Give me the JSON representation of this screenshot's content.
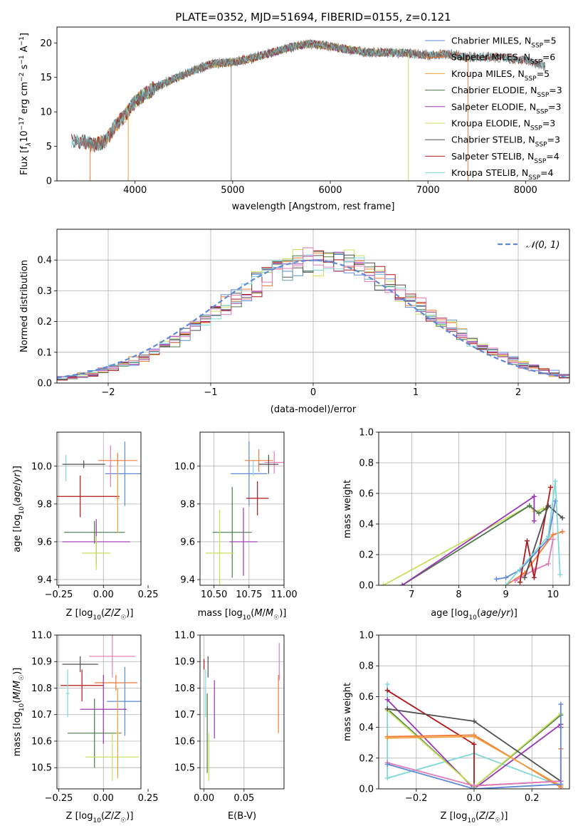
{
  "colors": {
    "Chabrier MILES": "#5f8ad8",
    "Salpeter MILES": "#f07b36",
    "Kroupa MILES": "#f0a040",
    "Chabrier ELODIE": "#4c7a4c",
    "Salpeter ELODIE": "#9b35b5",
    "Kroupa ELODIE": "#c8e05a",
    "Chabrier STELIB": "#505050",
    "Salpeter STELIB": "#b01818",
    "Kroupa STELIB": "#7fd8d8",
    "pink": "#e07cba",
    "grey": "#888888",
    "normal": "#5f8ad8"
  },
  "chart_data": [
    {
      "id": "spectrum",
      "type": "line",
      "title": "PLATE=0352, MJD=51694, FIBERID=0155, z=0.121",
      "xlabel": "wavelength [Angstrom, rest frame]",
      "ylabel_parts": [
        "Flux [f",
        "λ",
        "10",
        "−17",
        " erg cm",
        "−2",
        " s",
        "−1",
        " A",
        "−1",
        "]"
      ],
      "xlim": [
        3200,
        8450
      ],
      "ylim": [
        0,
        22.3
      ],
      "xticks": [
        4000,
        5000,
        6000,
        7000,
        8000
      ],
      "yticks": [
        0,
        5,
        10,
        15,
        20
      ],
      "continuum_x": [
        3400,
        3500,
        3600,
        3700,
        3800,
        3900,
        4000,
        4200,
        4400,
        4600,
        4800,
        5000,
        5200,
        5400,
        5600,
        5800,
        6000,
        6200,
        6400,
        6600,
        6800,
        7000,
        7200,
        7400,
        7600,
        7800,
        8000,
        8200
      ],
      "continuum_y": [
        5.8,
        5.5,
        5.2,
        5.8,
        8.0,
        9.5,
        11.5,
        13.5,
        14.8,
        16.0,
        17.0,
        17.2,
        17.8,
        18.6,
        19.4,
        19.9,
        19.5,
        19.0,
        18.6,
        18.6,
        18.5,
        18.2,
        18.4,
        17.9,
        18.0,
        17.8,
        17.5,
        16.7
      ],
      "legend": [
        {
          "name": "Chabrier MILES",
          "nssp": "5"
        },
        {
          "name": "Salpeter MILES",
          "nssp": "6"
        },
        {
          "name": "Kroupa MILES",
          "nssp": "5"
        },
        {
          "name": "Chabrier ELODIE",
          "nssp": "3"
        },
        {
          "name": "Salpeter ELODIE",
          "nssp": "3"
        },
        {
          "name": "Kroupa ELODIE",
          "nssp": "3"
        },
        {
          "name": "Chabrier STELIB",
          "nssp": "3"
        },
        {
          "name": "Salpeter STELIB",
          "nssp": "4"
        },
        {
          "name": "Kroupa STELIB",
          "nssp": "4"
        }
      ],
      "legend_prefix": "N",
      "legend_sub": "SSP",
      "legend_placement": "right",
      "grid": false
    },
    {
      "id": "residuals",
      "type": "step",
      "xlabel": "(data-model)/error",
      "ylabel": "Normed distribution",
      "xlim": [
        -2.5,
        2.5
      ],
      "ylim": [
        0,
        0.5
      ],
      "xticks": [
        -2,
        -1,
        0,
        1,
        2
      ],
      "xticklabels": [
        "−2",
        "−1",
        "0",
        "1",
        "2"
      ],
      "yticks": [
        0,
        0.1,
        0.2,
        0.3,
        0.4
      ],
      "yticklabels": [
        "0.0",
        "0.1",
        "0.2",
        "0.3",
        "0.4"
      ],
      "bin_width": 0.1,
      "bin_start": -2.5,
      "legend_label": "𝒩(0, 1)",
      "legend_placement": "upper right",
      "grid": true,
      "series_names": [
        "Chabrier MILES",
        "Salpeter MILES",
        "Kroupa ELODIE",
        "Chabrier ELODIE",
        "Salpeter ELODIE",
        "Salpeter STELIB",
        "Chabrier STELIB",
        "Kroupa STELIB",
        "pink"
      ]
    },
    {
      "id": "z-age",
      "type": "errorbar",
      "xlabel": "Z [log10(Z/Z☉)]",
      "ylabel": "age  [log10(age/yr)]",
      "xlim": [
        -0.26,
        0.21
      ],
      "ylim": [
        9.37,
        10.18
      ],
      "xticks": [
        -0.25,
        0,
        0.25
      ],
      "xticklabels": [
        "−0.25",
        "0.00",
        "0.25"
      ],
      "yticks": [
        9.4,
        9.6,
        9.8,
        10.0
      ],
      "yticklabels": [
        "9.4",
        "9.6",
        "9.8",
        "10.0"
      ],
      "grid": true,
      "points": [
        {
          "s": "Chabrier MILES",
          "x": 0.12,
          "xe": 0.11,
          "y": 9.96,
          "ye": 0.17
        },
        {
          "s": "Salpeter MILES",
          "x": 0.08,
          "xe": 0.11,
          "y": 10.03,
          "ye": 0.04
        },
        {
          "s": "pink",
          "x": 0.04,
          "xe": 0.01,
          "y": 10.0,
          "ye": 0.11
        },
        {
          "s": "Kroupa STELIB",
          "x": -0.21,
          "xe": 0.0,
          "y": 9.99,
          "ye": 0.07
        },
        {
          "s": "Chabrier STELIB",
          "x": -0.11,
          "xe": 0.12,
          "y": 10.01,
          "ye": 0.02
        },
        {
          "s": "Salpeter STELIB",
          "x": -0.13,
          "xe": 0.22,
          "y": 9.84,
          "ye": 0.11
        },
        {
          "s": "Chabrier ELODIE",
          "x": -0.05,
          "xe": 0.17,
          "y": 9.65,
          "ye": 0.06
        },
        {
          "s": "Salpeter ELODIE",
          "x": -0.04,
          "xe": 0.19,
          "y": 9.6,
          "ye": 0.12
        },
        {
          "s": "Kroupa ELODIE",
          "x": -0.04,
          "xe": 0.08,
          "y": 9.54,
          "ye": 0.09
        },
        {
          "s": "Kroupa MILES",
          "x": 0.08,
          "xe": 0.01,
          "y": 9.83,
          "ye": 0.18
        }
      ]
    },
    {
      "id": "mass-age",
      "type": "errorbar",
      "xlabel": "mass [log10(M/M☉)]",
      "xlim": [
        10.4,
        11.0
      ],
      "ylim": [
        9.37,
        10.18
      ],
      "xticks": [
        10.5,
        10.75,
        11.0
      ],
      "xticklabels": [
        "10.50",
        "10.75",
        "11.00"
      ],
      "yticks": [
        9.4,
        9.6,
        9.8,
        10.0
      ],
      "yticklabels": [
        "9.4",
        "9.6",
        "9.8",
        "10.0"
      ],
      "grid": true,
      "points": [
        {
          "s": "Chabrier MILES",
          "x": 10.75,
          "xe": 0.13,
          "y": 9.96,
          "ye": 0.17
        },
        {
          "s": "Salpeter MILES",
          "x": 10.82,
          "xe": 0.1,
          "y": 10.03,
          "ye": 0.06
        },
        {
          "s": "pink",
          "x": 10.93,
          "xe": 0.07,
          "y": 10.02,
          "ye": 0.06
        },
        {
          "s": "Chabrier STELIB",
          "x": 10.89,
          "xe": 0.07,
          "y": 10.01,
          "ye": 0.05
        },
        {
          "s": "Salpeter STELIB",
          "x": 10.81,
          "xe": 0.08,
          "y": 9.83,
          "ye": 0.09
        },
        {
          "s": "Chabrier ELODIE",
          "x": 10.63,
          "xe": 0.14,
          "y": 9.65,
          "ye": 0.24
        },
        {
          "s": "Salpeter ELODIE",
          "x": 10.71,
          "xe": 0.1,
          "y": 9.6,
          "ye": 0.18
        },
        {
          "s": "Kroupa ELODIE",
          "x": 10.54,
          "xe": 0.1,
          "y": 9.54,
          "ye": 0.23
        },
        {
          "s": "Kroupa STELIB",
          "x": 10.78,
          "xe": 0.0,
          "y": 9.99,
          "ye": 0.04
        }
      ]
    },
    {
      "id": "age-weight",
      "type": "line",
      "xlabel": "age  [log10(age/yr)]",
      "ylabel": "mass weight",
      "xlim": [
        6.3,
        10.35
      ],
      "ylim": [
        0,
        1.0
      ],
      "xticks": [
        7,
        8,
        9,
        10
      ],
      "xticklabels": [
        "7",
        "8",
        "9",
        "10"
      ],
      "yticks": [
        0,
        0.2,
        0.4,
        0.6,
        0.8,
        1.0
      ],
      "yticklabels": [
        "0.0",
        "0.2",
        "0.4",
        "0.6",
        "0.8",
        "1.0"
      ],
      "grid": true,
      "series": [
        {
          "s": "Kroupa ELODIE",
          "x": [
            6.4,
            9.5,
            9.6,
            9.8
          ],
          "y": [
            0.0,
            0.52,
            0.48,
            0.5
          ]
        },
        {
          "s": "Chabrier ELODIE",
          "x": [
            6.8,
            9.5,
            9.7,
            9.85
          ],
          "y": [
            0.0,
            0.52,
            0.47,
            0.5
          ]
        },
        {
          "s": "Salpeter ELODIE",
          "x": [
            6.8,
            9.6,
            9.6
          ],
          "y": [
            0.0,
            0.58,
            0.42
          ]
        },
        {
          "s": "Chabrier MILES",
          "x": [
            8.8,
            9.0,
            9.3,
            9.9,
            10.05
          ],
          "y": [
            0.04,
            0.05,
            0.1,
            0.3,
            0.55
          ]
        },
        {
          "s": "Salpeter MILES",
          "x": [
            9.0,
            9.4,
            10.0,
            10.2
          ],
          "y": [
            0.0,
            0.08,
            0.33,
            0.35
          ]
        },
        {
          "s": "pink",
          "x": [
            9.2,
            9.6,
            9.9,
            10.0
          ],
          "y": [
            0.03,
            0.1,
            0.14,
            0.3
          ]
        },
        {
          "s": "Salpeter STELIB",
          "x": [
            9.3,
            9.45,
            9.6,
            9.95
          ],
          "y": [
            0.02,
            0.29,
            0.05,
            0.64
          ]
        },
        {
          "s": "Chabrier STELIB",
          "x": [
            9.4,
            9.9,
            10.2
          ],
          "y": [
            0.05,
            0.52,
            0.44
          ]
        },
        {
          "s": "Kroupa STELIB",
          "x": [
            9.0,
            9.9,
            10.05,
            10.15
          ],
          "y": [
            0.0,
            0.32,
            0.68,
            0.07
          ]
        }
      ]
    },
    {
      "id": "z-mass",
      "type": "errorbar",
      "xlabel": "Z [log10(Z/Z☉)]",
      "ylabel": "mass [log10(M/M☉)]",
      "xlim": [
        -0.26,
        0.21
      ],
      "ylim": [
        10.42,
        11.0
      ],
      "xticks": [
        -0.25,
        0,
        0.25
      ],
      "xticklabels": [
        "−0.25",
        "0.00",
        "0.25"
      ],
      "yticks": [
        10.5,
        10.6,
        10.7,
        10.8,
        10.9,
        11.0
      ],
      "yticklabels": [
        "10.5",
        "10.6",
        "10.7",
        "10.8",
        "10.9",
        "11.0"
      ],
      "grid": true,
      "points": [
        {
          "s": "pink",
          "x": 0.05,
          "xe": 0.13,
          "y": 10.92,
          "ye": 0.08
        },
        {
          "s": "Chabrier STELIB",
          "x": -0.13,
          "xe": 0.1,
          "y": 10.89,
          "ye": 0.03
        },
        {
          "s": "Salpeter MILES",
          "x": 0.07,
          "xe": 0.12,
          "y": 10.82,
          "ye": 0.03
        },
        {
          "s": "Salpeter STELIB",
          "x": -0.12,
          "xe": 0.12,
          "y": 10.81,
          "ye": 0.06
        },
        {
          "s": "Kroupa STELIB",
          "x": -0.2,
          "xe": 0.01,
          "y": 10.78,
          "ye": 0.09
        },
        {
          "s": "Chabrier MILES",
          "x": 0.12,
          "xe": 0.1,
          "y": 10.75,
          "ye": 0.13
        },
        {
          "s": "Salpeter ELODIE",
          "x": 0.0,
          "xe": 0.13,
          "y": 10.72,
          "ye": 0.13
        },
        {
          "s": "Chabrier ELODIE",
          "x": -0.05,
          "xe": 0.15,
          "y": 10.63,
          "ye": 0.13
        },
        {
          "s": "Kroupa ELODIE",
          "x": 0.05,
          "xe": 0.15,
          "y": 10.54,
          "ye": 0.09
        },
        {
          "s": "Kroupa MILES",
          "x": 0.08,
          "xe": 0.01,
          "y": 10.63,
          "ye": 0.17
        }
      ]
    },
    {
      "id": "ebv-mass",
      "type": "errorbar",
      "xlabel": "E(B-V)",
      "xlim": [
        -0.005,
        0.1
      ],
      "ylim": [
        10.42,
        11.0
      ],
      "xticks": [
        0,
        0.05
      ],
      "xticklabels": [
        "0.00",
        "0.05"
      ],
      "yticks": [
        10.5,
        10.6,
        10.7,
        10.8,
        10.9,
        11.0
      ],
      "yticklabels": [
        "10.5",
        "10.6",
        "10.7",
        "10.8",
        "10.9",
        "11.0"
      ],
      "grid": true,
      "points": [
        {
          "s": "Salpeter STELIB",
          "x": 0.0,
          "xe": 0,
          "y": 10.89,
          "ye": 0.02
        },
        {
          "s": "Chabrier STELIB",
          "x": 0.005,
          "xe": 0,
          "y": 10.88,
          "ye": 0.04
        },
        {
          "s": "Kroupa STELIB",
          "x": 0.002,
          "xe": 0,
          "y": 10.78,
          "ye": 0.09
        },
        {
          "s": "Chabrier ELODIE",
          "x": 0.004,
          "xe": 0,
          "y": 10.63,
          "ye": 0.15
        },
        {
          "s": "Kroupa ELODIE",
          "x": 0.006,
          "xe": 0,
          "y": 10.54,
          "ye": 0.09
        },
        {
          "s": "Salpeter ELODIE",
          "x": 0.013,
          "xe": 0,
          "y": 10.72,
          "ye": 0.11
        },
        {
          "s": "pink",
          "x": 0.094,
          "xe": 0,
          "y": 10.9,
          "ye": 0.07
        },
        {
          "s": "Salpeter MILES",
          "x": 0.093,
          "xe": 0,
          "y": 10.74,
          "ye": 0.11
        }
      ]
    },
    {
      "id": "z-weight",
      "type": "line",
      "xlabel": "Z [log10(Z/Z☉)]",
      "ylabel": "mass weight",
      "xlim": [
        -0.33,
        0.33
      ],
      "ylim": [
        0,
        1.0
      ],
      "xticks": [
        -0.2,
        0,
        0.2
      ],
      "xticklabels": [
        "−0.2",
        "0.0",
        "0.2"
      ],
      "yticks": [
        0,
        0.2,
        0.4,
        0.6,
        0.8,
        1.0
      ],
      "yticklabels": [
        "0.0",
        "0.2",
        "0.4",
        "0.6",
        "0.8",
        "1.0"
      ],
      "grid": true,
      "series": [
        {
          "s": "Kroupa STELIB",
          "x": [
            -0.3,
            -0.3,
            0.0,
            0.3
          ],
          "y": [
            0.68,
            0.07,
            0.23,
            0.02
          ]
        },
        {
          "s": "Salpeter STELIB",
          "x": [
            -0.3,
            0.0,
            0.0,
            0.3
          ],
          "y": [
            0.64,
            0.29,
            0.02,
            0.05
          ]
        },
        {
          "s": "Salpeter ELODIE",
          "x": [
            -0.3,
            0.0,
            0.3,
            0.3
          ],
          "y": [
            0.58,
            0.0,
            0.42,
            0.4
          ]
        },
        {
          "s": "Chabrier ELODIE",
          "x": [
            -0.3,
            0.0,
            0.3
          ],
          "y": [
            0.52,
            0.01,
            0.48
          ]
        },
        {
          "s": "Kroupa ELODIE",
          "x": [
            -0.3,
            0.0,
            0.3
          ],
          "y": [
            0.51,
            0.01,
            0.49
          ]
        },
        {
          "s": "Chabrier STELIB",
          "x": [
            -0.3,
            0.0,
            0.3
          ],
          "y": [
            0.52,
            0.44,
            0.05
          ]
        },
        {
          "s": "Salpeter MILES",
          "x": [
            -0.3,
            0.0,
            0.3,
            0.3
          ],
          "y": [
            0.34,
            0.35,
            0.01,
            0.26
          ]
        },
        {
          "s": "Kroupa MILES",
          "x": [
            -0.3,
            0.0,
            0.3
          ],
          "y": [
            0.33,
            0.34,
            0.02
          ]
        },
        {
          "s": "pink",
          "x": [
            -0.3,
            0.0,
            0.3
          ],
          "y": [
            0.17,
            0.02,
            0.05
          ]
        },
        {
          "s": "Chabrier MILES",
          "x": [
            -0.3,
            0.0,
            0.3,
            0.3
          ],
          "y": [
            0.16,
            0.0,
            0.03,
            0.55
          ]
        }
      ]
    }
  ]
}
